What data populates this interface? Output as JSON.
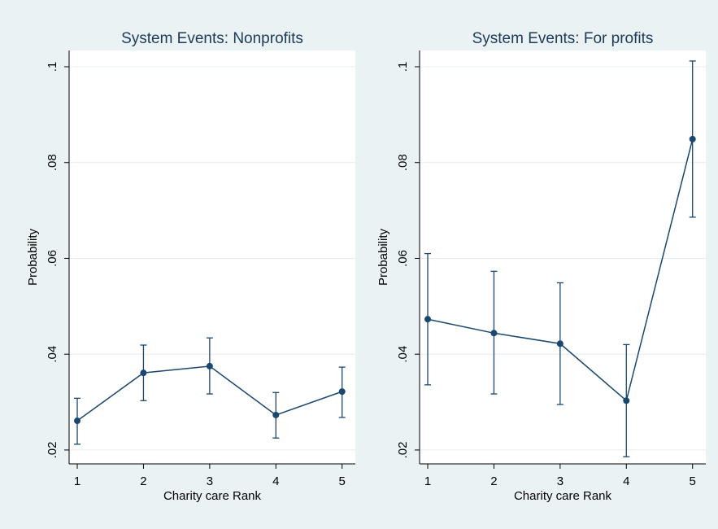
{
  "chart_data": [
    {
      "type": "line",
      "title": "System Events: Nonprofits",
      "xlabel": "Charity care Rank",
      "ylabel": "Probability",
      "x": [
        1,
        2,
        3,
        4,
        5
      ],
      "series": [
        {
          "color": "#1a476f",
          "values": [
            0.0261,
            0.0361,
            0.0375,
            0.0273,
            0.0322
          ],
          "lower": [
            0.0212,
            0.0303,
            0.0317,
            0.0225,
            0.0268
          ],
          "upper": [
            0.0308,
            0.0419,
            0.0434,
            0.032,
            0.0373
          ]
        }
      ],
      "xlim": [
        0.877,
        5.2
      ],
      "xticks": [
        1,
        2,
        3,
        4,
        5
      ],
      "ylim": [
        0.0171,
        0.1034
      ],
      "yticks": [
        {
          "value": 0.02,
          "label": ".02"
        },
        {
          "value": 0.04,
          "label": ".04"
        },
        {
          "value": 0.06,
          "label": ".06"
        },
        {
          "value": 0.08,
          "label": ".08"
        },
        {
          "value": 0.1,
          "label": ".1"
        }
      ],
      "grid": true
    },
    {
      "type": "line",
      "title": "System Events: For profits",
      "xlabel": "Charity care Rank",
      "ylabel": "Probability",
      "x": [
        1,
        2,
        3,
        4,
        5
      ],
      "series": [
        {
          "color": "#1a476f",
          "values": [
            0.0473,
            0.0444,
            0.0422,
            0.0303,
            0.0849
          ],
          "lower": [
            0.0336,
            0.0317,
            0.0295,
            0.0186,
            0.0686
          ],
          "upper": [
            0.061,
            0.0573,
            0.0549,
            0.042,
            0.1012
          ]
        }
      ],
      "xlim": [
        0.877,
        5.2
      ],
      "xticks": [
        1,
        2,
        3,
        4,
        5
      ],
      "ylim": [
        0.0171,
        0.1034
      ],
      "yticks": [
        {
          "value": 0.02,
          "label": ".02"
        },
        {
          "value": 0.04,
          "label": ".04"
        },
        {
          "value": 0.06,
          "label": ".06"
        },
        {
          "value": 0.08,
          "label": ".08"
        },
        {
          "value": 0.1,
          "label": ".1"
        }
      ],
      "grid": true
    }
  ]
}
